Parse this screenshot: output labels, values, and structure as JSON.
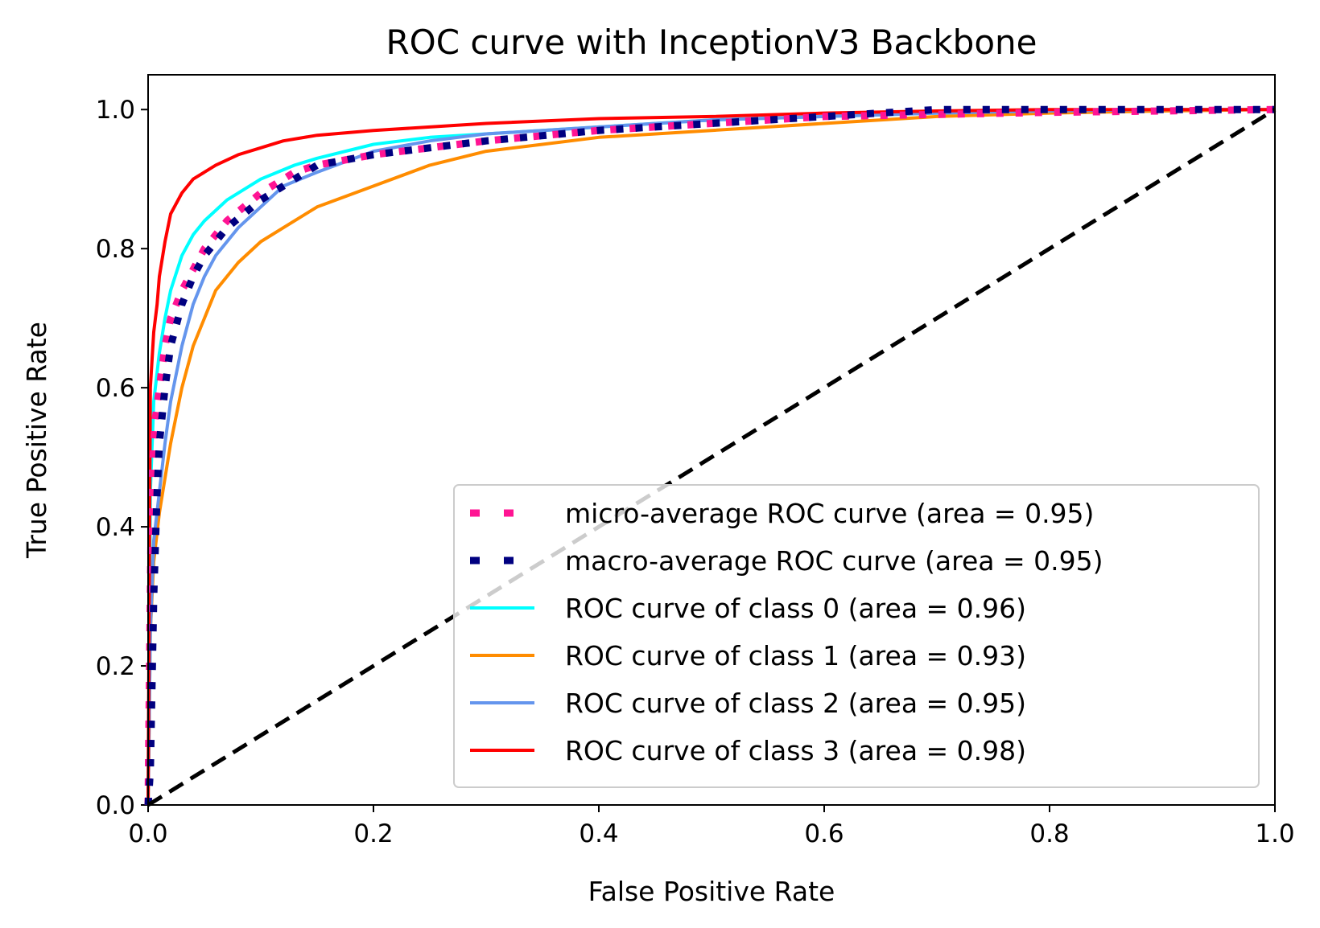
{
  "chart_data": {
    "type": "line",
    "title": "ROC curve with InceptionV3 Backbone",
    "xlabel": "False Positive Rate",
    "ylabel": "True Positive Rate",
    "xlim": [
      0.0,
      1.0
    ],
    "ylim": [
      0.0,
      1.05
    ],
    "xticks": [
      "0.0",
      "0.2",
      "0.4",
      "0.6",
      "0.8",
      "1.0"
    ],
    "yticks": [
      "0.0",
      "0.2",
      "0.4",
      "0.6",
      "0.8",
      "1.0"
    ],
    "grid": false,
    "legend_position": "lower-right",
    "series": [
      {
        "name": "micro-average ROC curve (area = 0.95)",
        "color": "#ff1493",
        "style": "dotted",
        "x": [
          0.0,
          0.003,
          0.006,
          0.01,
          0.015,
          0.02,
          0.03,
          0.04,
          0.05,
          0.07,
          0.1,
          0.13,
          0.15,
          0.2,
          0.25,
          0.3,
          0.4,
          0.5,
          0.6,
          0.7,
          0.8,
          0.9,
          1.0
        ],
        "y": [
          0.0,
          0.45,
          0.55,
          0.6,
          0.66,
          0.7,
          0.74,
          0.77,
          0.8,
          0.84,
          0.88,
          0.91,
          0.92,
          0.935,
          0.945,
          0.955,
          0.97,
          0.98,
          0.99,
          0.993,
          0.996,
          0.998,
          1.0
        ]
      },
      {
        "name": "macro-average ROC curve (area = 0.95)",
        "color": "#000080",
        "style": "dotted",
        "x": [
          0.0,
          0.002,
          0.005,
          0.008,
          0.01,
          0.015,
          0.02,
          0.03,
          0.04,
          0.05,
          0.07,
          0.1,
          0.13,
          0.15,
          0.2,
          0.25,
          0.3,
          0.4,
          0.5,
          0.6,
          0.7,
          0.8,
          0.9,
          1.0
        ],
        "y": [
          0.0,
          0.05,
          0.3,
          0.45,
          0.52,
          0.6,
          0.66,
          0.72,
          0.76,
          0.79,
          0.83,
          0.87,
          0.9,
          0.92,
          0.935,
          0.945,
          0.955,
          0.97,
          0.98,
          0.99,
          1.0,
          1.0,
          1.0,
          1.0
        ]
      },
      {
        "name": "ROC curve of class 0 (area = 0.96)",
        "color": "#00ffff",
        "style": "solid",
        "x": [
          0.0,
          0.002,
          0.005,
          0.01,
          0.015,
          0.02,
          0.03,
          0.04,
          0.05,
          0.07,
          0.1,
          0.13,
          0.15,
          0.2,
          0.25,
          0.3,
          0.4,
          0.5,
          0.6,
          0.7,
          0.8,
          0.9,
          1.0
        ],
        "y": [
          0.0,
          0.45,
          0.58,
          0.65,
          0.7,
          0.74,
          0.79,
          0.82,
          0.84,
          0.87,
          0.9,
          0.92,
          0.93,
          0.95,
          0.96,
          0.965,
          0.975,
          0.985,
          0.99,
          0.995,
          0.998,
          1.0,
          1.0
        ]
      },
      {
        "name": "ROC curve of class 1 (area = 0.93)",
        "color": "#ff8c00",
        "style": "solid",
        "x": [
          0.0,
          0.002,
          0.005,
          0.01,
          0.015,
          0.02,
          0.03,
          0.04,
          0.05,
          0.06,
          0.08,
          0.1,
          0.12,
          0.15,
          0.2,
          0.25,
          0.3,
          0.35,
          0.4,
          0.5,
          0.6,
          0.7,
          0.8,
          0.9,
          1.0
        ],
        "y": [
          0.0,
          0.25,
          0.35,
          0.42,
          0.47,
          0.52,
          0.6,
          0.66,
          0.7,
          0.74,
          0.78,
          0.81,
          0.83,
          0.86,
          0.89,
          0.92,
          0.94,
          0.95,
          0.96,
          0.97,
          0.98,
          0.99,
          0.995,
          0.998,
          1.0
        ]
      },
      {
        "name": "ROC curve of class 2 (area = 0.95)",
        "color": "#6495ed",
        "style": "solid",
        "x": [
          0.0,
          0.002,
          0.005,
          0.01,
          0.015,
          0.02,
          0.03,
          0.04,
          0.05,
          0.06,
          0.07,
          0.08,
          0.1,
          0.12,
          0.15,
          0.2,
          0.25,
          0.3,
          0.35,
          0.4,
          0.5,
          0.6,
          0.7,
          0.8,
          0.9,
          1.0
        ],
        "y": [
          0.0,
          0.25,
          0.38,
          0.45,
          0.52,
          0.58,
          0.66,
          0.72,
          0.76,
          0.79,
          0.81,
          0.83,
          0.86,
          0.89,
          0.91,
          0.94,
          0.955,
          0.965,
          0.97,
          0.975,
          0.985,
          0.99,
          0.995,
          0.998,
          1.0,
          1.0
        ]
      },
      {
        "name": "ROC curve of class 3 (area = 0.98)",
        "color": "#ff0000",
        "style": "solid",
        "x": [
          0.0,
          0.002,
          0.005,
          0.008,
          0.01,
          0.015,
          0.02,
          0.03,
          0.04,
          0.05,
          0.06,
          0.08,
          0.1,
          0.12,
          0.15,
          0.2,
          0.25,
          0.3,
          0.4,
          0.5,
          0.6,
          0.7,
          0.8,
          0.9,
          1.0
        ],
        "y": [
          0.0,
          0.6,
          0.68,
          0.72,
          0.76,
          0.81,
          0.85,
          0.88,
          0.9,
          0.91,
          0.92,
          0.935,
          0.945,
          0.955,
          0.963,
          0.97,
          0.975,
          0.98,
          0.987,
          0.99,
          0.995,
          0.998,
          1.0,
          1.0,
          1.0
        ]
      },
      {
        "name": "Chance",
        "color": "#000000",
        "style": "dashed",
        "in_legend": false,
        "x": [
          0.0,
          1.0
        ],
        "y": [
          0.0,
          1.0
        ]
      }
    ]
  }
}
